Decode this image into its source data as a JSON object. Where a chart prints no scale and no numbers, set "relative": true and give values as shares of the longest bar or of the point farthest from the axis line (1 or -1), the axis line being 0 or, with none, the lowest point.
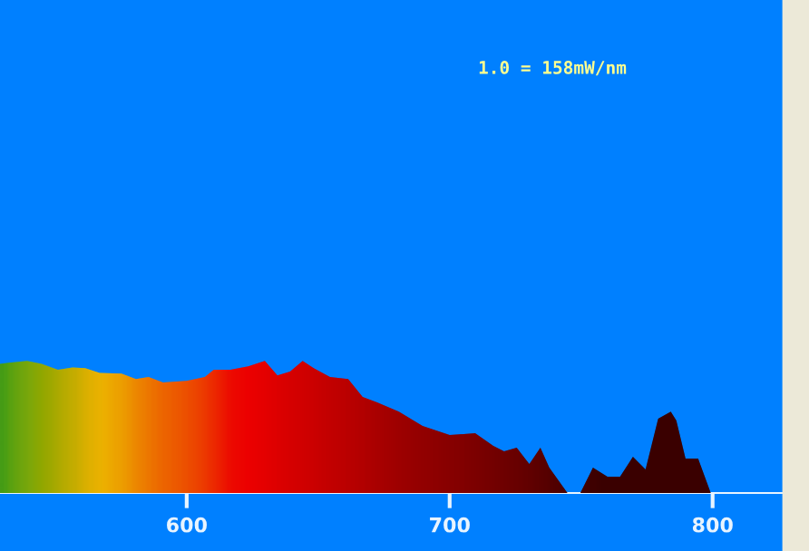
{
  "chart_data": {
    "type": "area",
    "relative": true,
    "x": [
      529.0,
      532.4,
      539.3,
      544.8,
      551.0,
      556.6,
      561.4,
      566.9,
      575.2,
      580.7,
      585.5,
      591.0,
      600.0,
      606.9,
      610.3,
      616.6,
      623.4,
      629.7,
      634.5,
      639.3,
      644.1,
      648.3,
      654.5,
      661.4,
      666.9,
      672.4,
      680.7,
      689.7,
      700.0,
      709.7,
      716.6,
      720.7,
      725.5,
      730.3,
      734.5,
      737.9,
      744.8,
      749.7,
      754.5,
      760.0,
      764.8,
      769.7,
      774.5,
      779.3,
      784.1,
      786.2,
      789.7,
      794.5,
      799.3
    ],
    "values": [
      0.977,
      0.986,
      1.0,
      0.977,
      0.932,
      0.949,
      0.945,
      0.908,
      0.904,
      0.863,
      0.877,
      0.836,
      0.849,
      0.877,
      0.932,
      0.932,
      0.959,
      1.0,
      0.89,
      0.918,
      1.0,
      0.945,
      0.877,
      0.863,
      0.726,
      0.685,
      0.616,
      0.507,
      0.438,
      0.452,
      0.356,
      0.315,
      0.342,
      0.219,
      0.342,
      0.192,
      0,
      0,
      0.192,
      0.123,
      0.123,
      0.274,
      0.178,
      0.562,
      0.616,
      0.548,
      0.26,
      0.26,
      0
    ],
    "colors": [
      "#10e020",
      "#30e818",
      "#60f010",
      "#80f000",
      "#a8f400",
      "#c8f800",
      "#e8fc00",
      "#ffff00",
      "#ffe000",
      "#ffc000",
      "#ffa800",
      "#ff9000",
      "#ff7000",
      "#ff5000",
      "#ff3800",
      "#ff1000",
      "#ff0000",
      "#f40000",
      "#ea0000",
      "#e00000",
      "#d80000",
      "#d00000",
      "#c40000",
      "#b80000",
      "#ac0000",
      "#a00000",
      "#900000",
      "#800000",
      "#700000",
      "#600000",
      "#540000",
      "#4c0000",
      "#440000",
      "#3a0000",
      "#300000",
      "#280000",
      "#180000",
      "#100000",
      "#080000",
      "#000000",
      "#000000",
      "#000000",
      "#000000",
      "#000000",
      "#000000",
      "#000000",
      "#000000",
      "#000000",
      "#000000"
    ],
    "color": "#c00000",
    "xlim": [
      529,
      827
    ],
    "xticks": [
      600,
      700,
      800
    ],
    "annotations": [
      "1.0 = 158mW/nm"
    ]
  }
}
